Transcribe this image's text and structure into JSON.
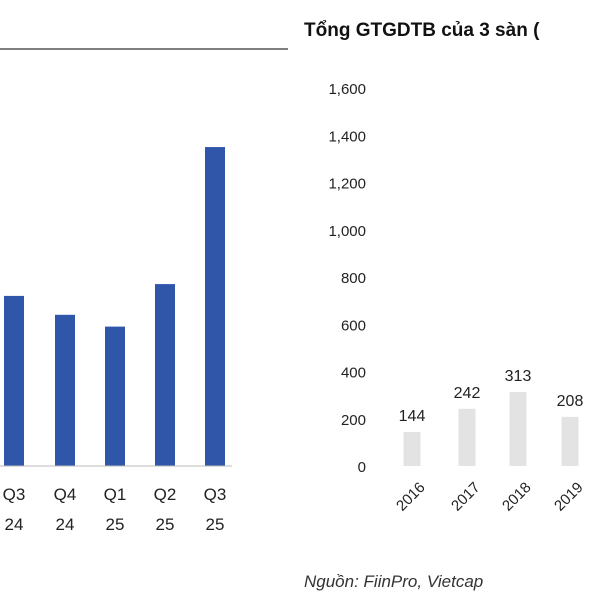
{
  "colors": {
    "left_bar": "#2f56a8",
    "right_bar": "#e3e3e3",
    "text": "#222222",
    "title_rule": "#333333"
  },
  "source": "Nguồn: FiinPro, Vietcap",
  "chart_data": [
    {
      "type": "bar",
      "title": "",
      "categories": [
        [
          "Q3",
          "24"
        ],
        [
          "Q4",
          "24"
        ],
        [
          "Q1",
          "25"
        ],
        [
          "Q2",
          "25"
        ],
        [
          "Q3",
          "25"
        ]
      ],
      "values": [
        720,
        640,
        590,
        770,
        1350
      ],
      "ylim": [
        0,
        1600
      ],
      "grid": false,
      "xlabel": "",
      "ylabel": ""
    },
    {
      "type": "bar",
      "title": "Tổng GTGDTB của 3 sàn (",
      "categories": [
        "2016",
        "2017",
        "2018",
        "2019"
      ],
      "values": [
        144,
        242,
        313,
        208
      ],
      "data_labels": [
        "144",
        "242",
        "313",
        "208"
      ],
      "y_ticks": [
        "0",
        "200",
        "400",
        "600",
        "800",
        "1,000",
        "1,200",
        "1,400",
        "1,600"
      ],
      "ylim": [
        0,
        1600
      ],
      "grid": false,
      "xlabel": "",
      "ylabel": ""
    }
  ]
}
